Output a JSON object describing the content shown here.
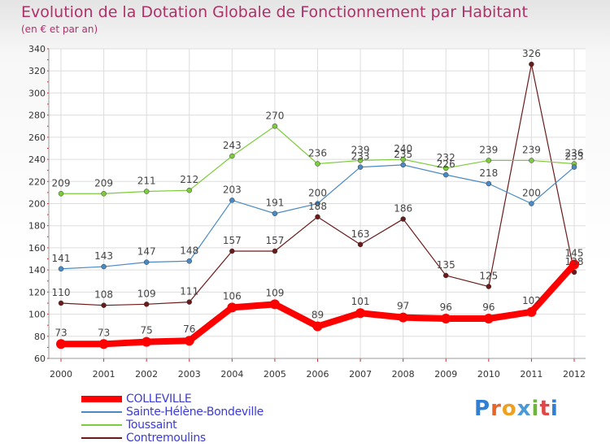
{
  "title": "Evolution de la Dotation Globale de Fonctionnement par Habitant",
  "subtitle": "(en € et par an)",
  "logo_text": "Proxiti",
  "chart_data": {
    "type": "line",
    "x": [
      "2000",
      "2001",
      "2002",
      "2003",
      "2004",
      "2005",
      "2006",
      "2007",
      "2008",
      "2009",
      "2010",
      "2011",
      "2012"
    ],
    "ylim": [
      60,
      340
    ],
    "yticks": [
      60,
      80,
      100,
      120,
      140,
      160,
      180,
      200,
      220,
      240,
      260,
      280,
      300,
      320,
      340
    ],
    "grid": true,
    "legend_position": "bottom-left",
    "series": [
      {
        "name": "Contremoulins",
        "color": "#6b1a1a",
        "values": [
          110,
          108,
          109,
          111,
          157,
          157,
          188,
          163,
          186,
          135,
          125,
          326,
          138
        ]
      },
      {
        "name": "Toussaint",
        "color": "#7ccc3c",
        "values": [
          209,
          209,
          211,
          212,
          243,
          270,
          236,
          239,
          240,
          232,
          239,
          239,
          236
        ]
      },
      {
        "name": "Sainte-Hélène-Bondeville",
        "color": "#4a8ac4",
        "values": [
          141,
          143,
          147,
          148,
          203,
          191,
          200,
          233,
          235,
          226,
          218,
          200,
          233
        ]
      },
      {
        "name": "COLLEVILLE",
        "color": "#ff0000",
        "values": [
          73,
          73,
          75,
          76,
          106,
          109,
          89,
          101,
          97,
          96,
          96,
          102,
          145
        ]
      }
    ]
  },
  "legend": [
    {
      "label": "COLLEVILLE",
      "color": "#ff0000",
      "thick": true
    },
    {
      "label": "Sainte-Hélène-Bondeville",
      "color": "#4a8ac4",
      "thick": false
    },
    {
      "label": "Toussaint",
      "color": "#7ccc3c",
      "thick": false
    },
    {
      "label": "Contremoulins",
      "color": "#6b1a1a",
      "thick": false
    }
  ]
}
